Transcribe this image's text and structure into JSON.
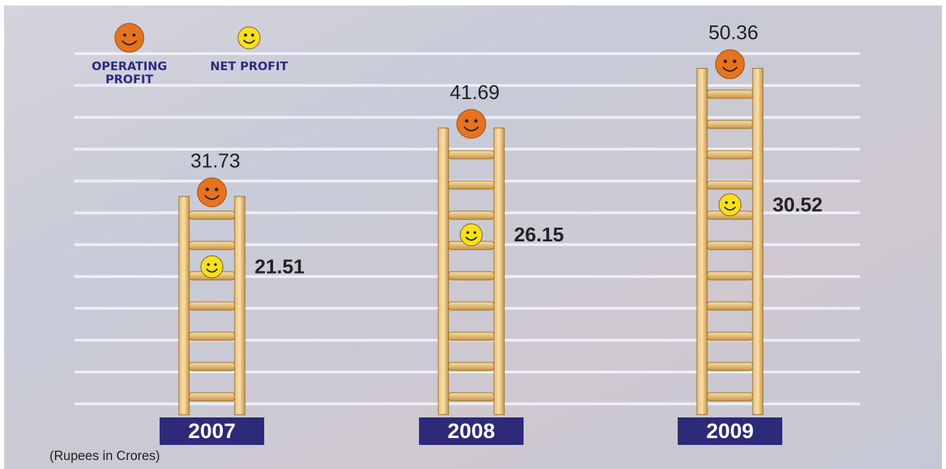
{
  "chart_data": {
    "type": "ladder",
    "categories": [
      "2007",
      "2008",
      "2009"
    ],
    "series": [
      {
        "name": "OPERATING PROFIT",
        "color": "#e8731e",
        "values": [
          31.73,
          41.69,
          50.36
        ]
      },
      {
        "name": "NET PROFIT",
        "color": "#f5e21a",
        "values": [
          21.51,
          26.15,
          30.52
        ]
      }
    ],
    "ylim": [
      0,
      55
    ],
    "note": "(Rupees in Crores)"
  }
}
